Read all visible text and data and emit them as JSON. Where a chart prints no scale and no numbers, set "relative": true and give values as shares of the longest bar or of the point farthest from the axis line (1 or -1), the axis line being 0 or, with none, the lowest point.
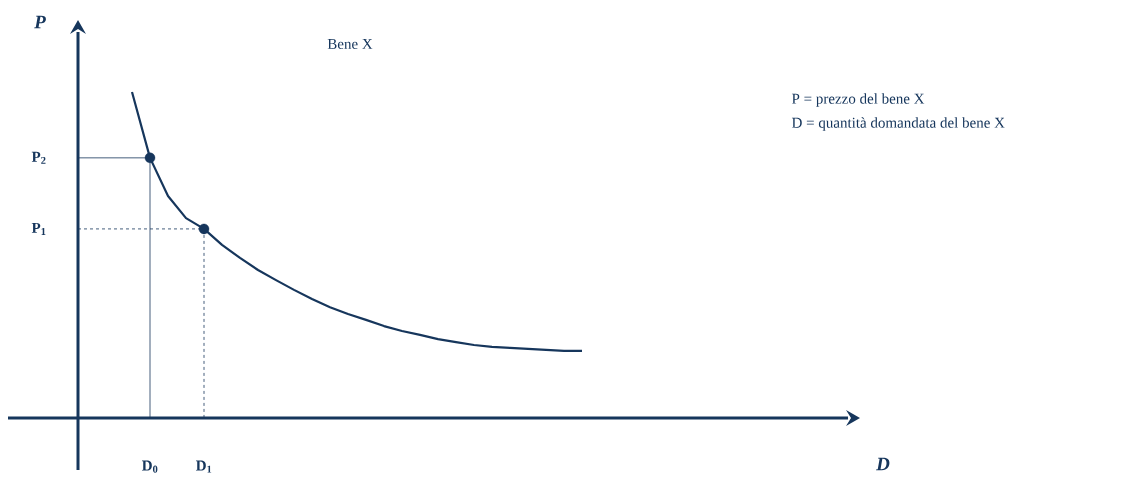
{
  "chart_data": {
    "type": "line",
    "title": "Bene X",
    "ylabel": "P",
    "relative": true,
    "annotations": [
      "P = prezzo del bene X",
      "D = quantità domandata del bene X",
      "D"
    ],
    "categories": [
      null,
      null,
      null,
      null,
      "D$_{0}$",
      null,
      null,
      "D$_{1}$",
      null,
      null,
      null,
      null,
      null,
      null,
      null,
      null,
      null,
      null,
      null,
      null,
      null,
      null,
      null,
      null,
      null,
      null,
      null,
      null,
      null
    ],
    "series": [
      {
        "color": "#16365c",
        "values": [
          null,
          null,
          null,
          1,
          0.798,
          0.681,
          0.613,
          0.58,
          0.531,
          0.491,
          0.454,
          0.423,
          0.393,
          0.365,
          0.34,
          0.319,
          0.301,
          0.282,
          0.267,
          0.255,
          0.242,
          0.233,
          0.224,
          0.218,
          0.215,
          0.212,
          0.209,
          0.206,
          0.206
        ]
      },
      {
        "type": "scatter",
        "color": "#16365c",
        "marker": "circle",
        "values": [
          null,
          null,
          null,
          null,
          0.798,
          null,
          null,
          0.58,
          null,
          null,
          null,
          null,
          null,
          null,
          null,
          null,
          null,
          null,
          null,
          null,
          null,
          null,
          null,
          null,
          null,
          null,
          null,
          null,
          null
        ]
      }
    ],
    "ref_lines": [
      {
        "axis": "y",
        "value": 0.798,
        "label": "P$_{2}$",
        "color": "#16365c",
        "line_style": "solid"
      },
      {
        "axis": "y",
        "value": 0.58,
        "label": "P$_{1}$",
        "color": "#16365c",
        "line_style": "dashed"
      }
    ]
  }
}
